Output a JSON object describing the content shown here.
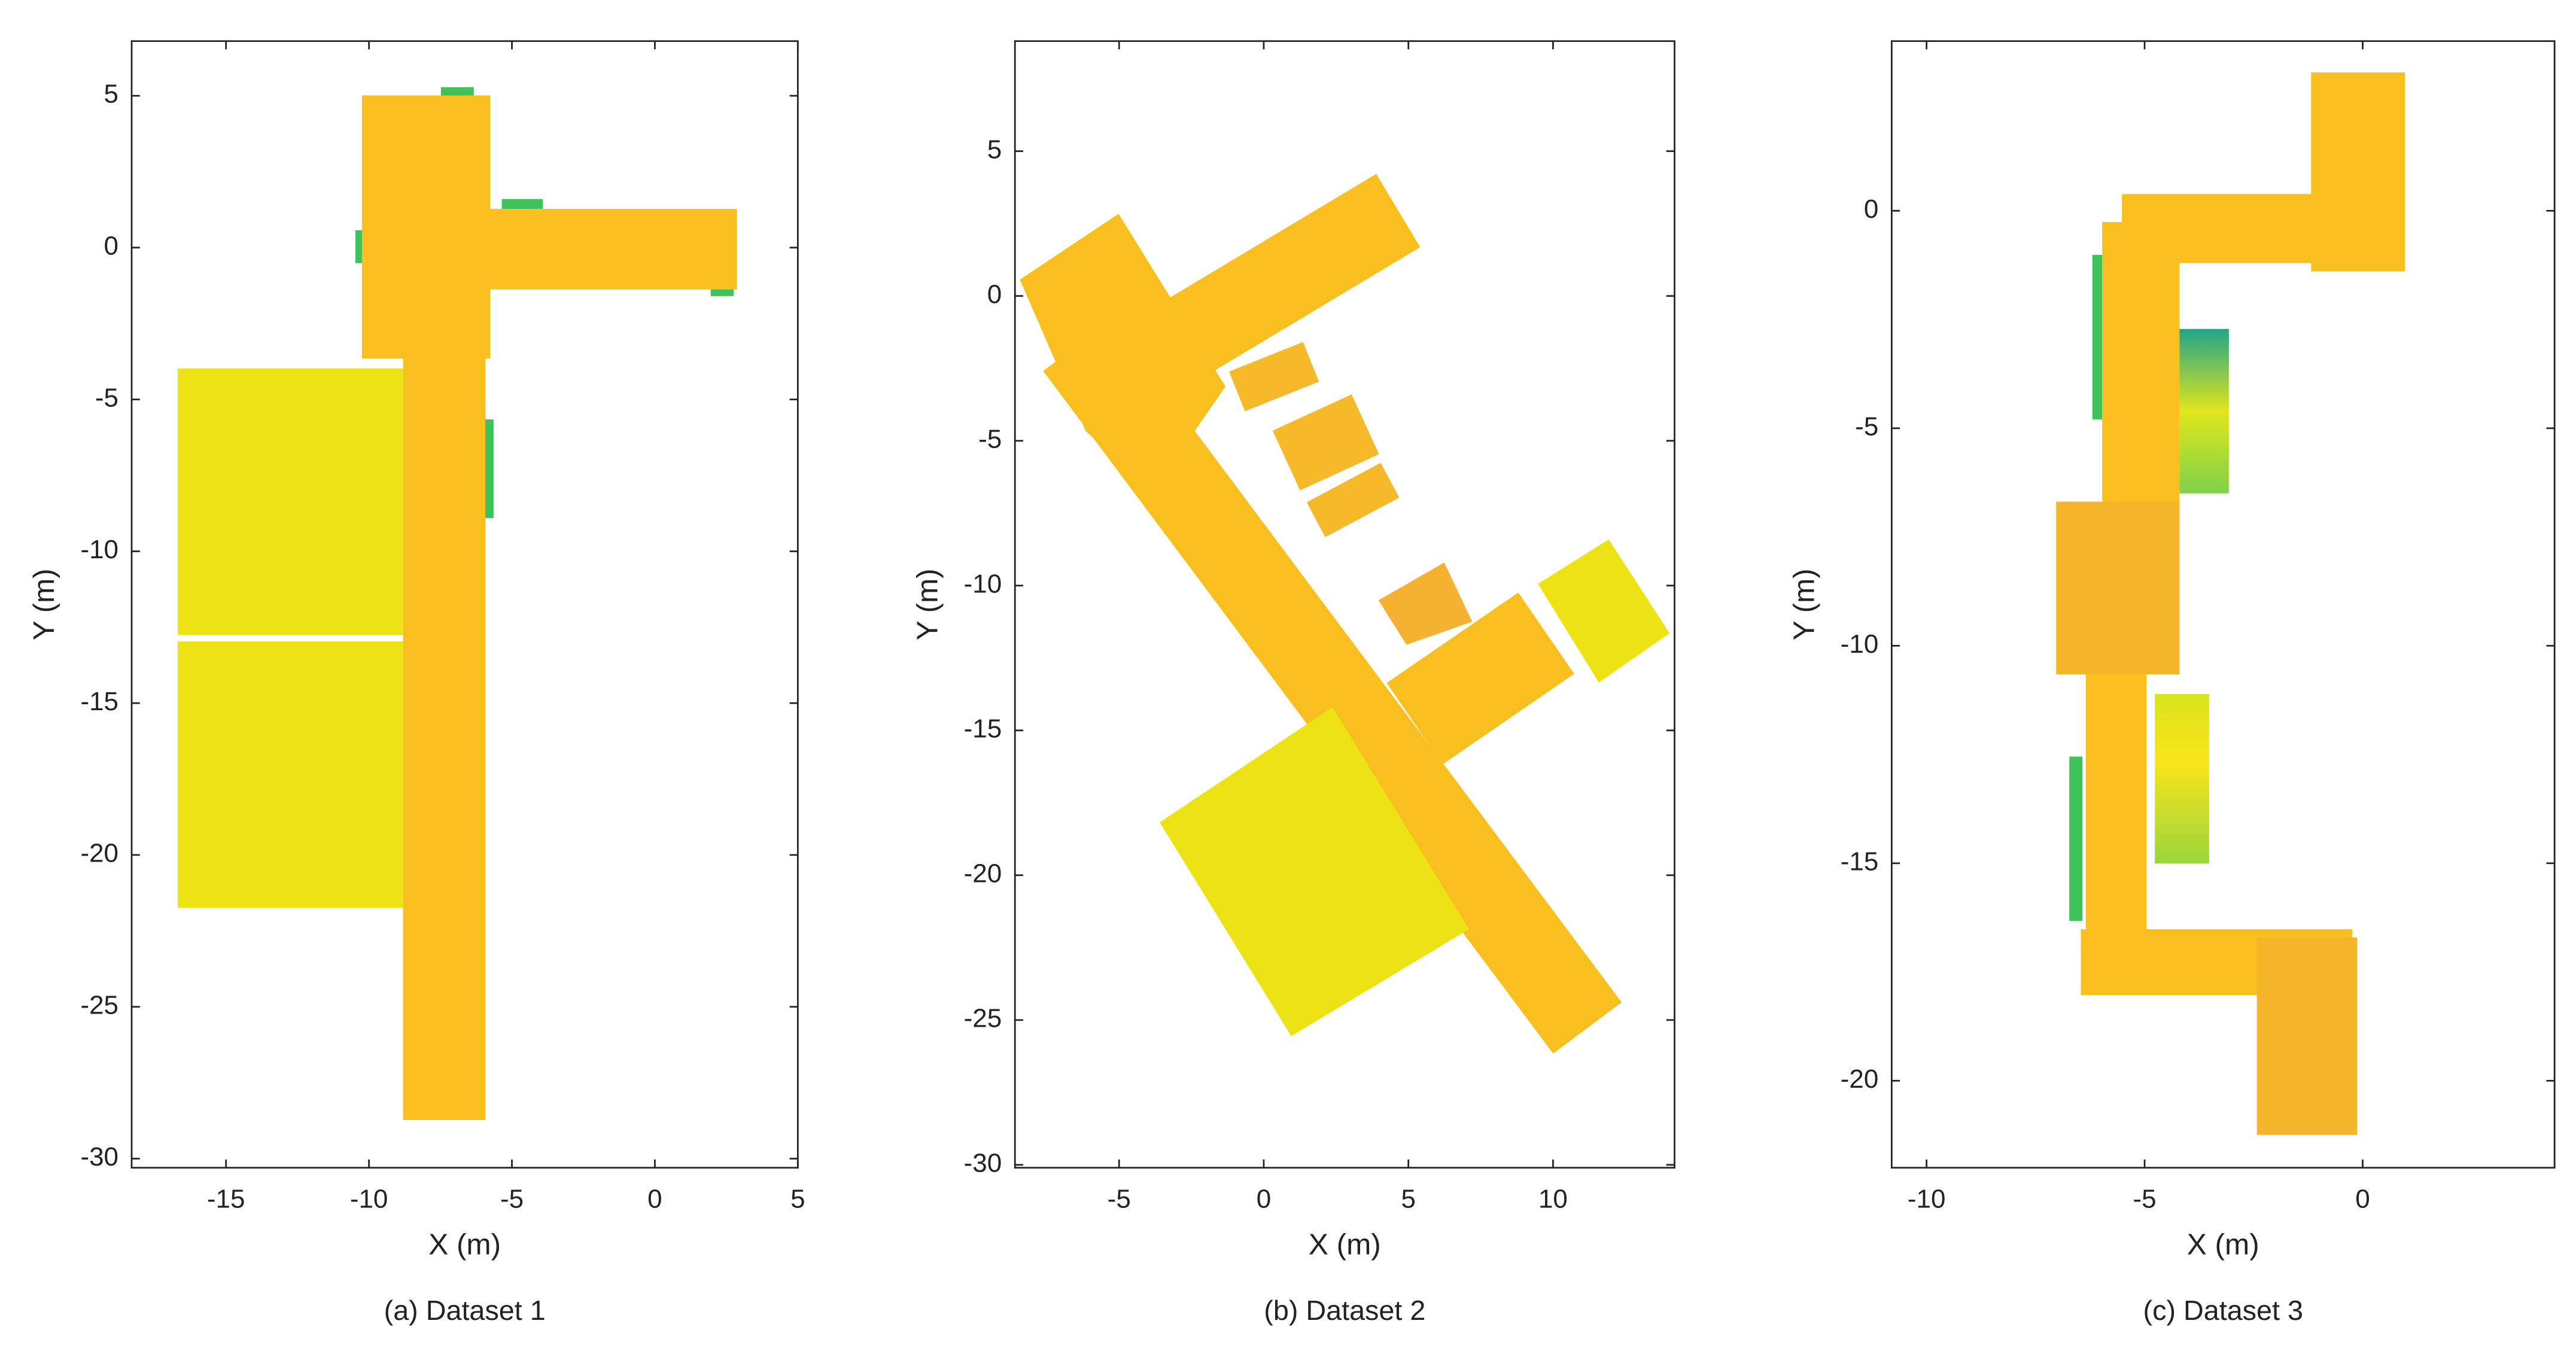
{
  "chart_data": [
    {
      "type": "map",
      "title": "(a) Dataset 1",
      "xlabel": "X (m)",
      "ylabel": "Y (m)",
      "xlim": [
        -18.3,
        5
      ],
      "ylim": [
        -30.3,
        6.8
      ],
      "xticks": [
        -15,
        -10,
        -5,
        0,
        5
      ],
      "yticks": [
        5,
        0,
        -5,
        -10,
        -15,
        -20,
        -25,
        -30
      ]
    },
    {
      "type": "map",
      "title": "(b) Dataset 2",
      "xlabel": "X (m)",
      "ylabel": "Y (m)",
      "xlim": [
        -8.6,
        14.2
      ],
      "ylim": [
        -30.1,
        8.8
      ],
      "xticks": [
        -5,
        0,
        5,
        10
      ],
      "yticks": [
        5,
        0,
        -5,
        -10,
        -15,
        -20,
        -25,
        -30
      ]
    },
    {
      "type": "map",
      "title": "(c) Dataset 3",
      "xlabel": "X (m)",
      "ylabel": "Y (m)",
      "xlim": [
        -10.8,
        4.4
      ],
      "ylim": [
        -22,
        3.9
      ],
      "xticks": [
        -10,
        -5,
        0
      ],
      "yticks": [
        0,
        -5,
        -10,
        -15,
        -20
      ]
    }
  ]
}
